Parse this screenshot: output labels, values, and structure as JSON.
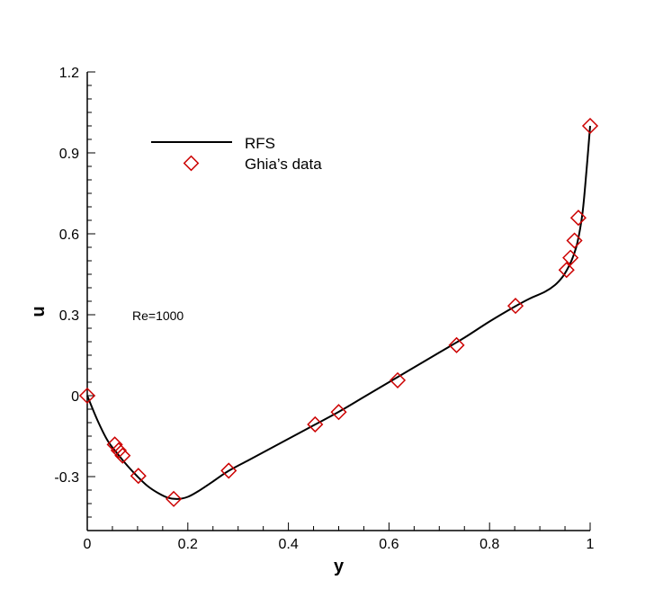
{
  "chart_data": {
    "type": "line",
    "xlabel": "y",
    "ylabel": "u",
    "xlim": [
      0,
      1
    ],
    "ylim": [
      -0.5,
      1.2
    ],
    "x_ticks": [
      0,
      0.2,
      0.4,
      0.6,
      0.8,
      1
    ],
    "x_tick_labels": [
      "0",
      "0.2",
      "0.4",
      "0.6",
      "0.8",
      "1"
    ],
    "y_ticks": [
      -0.3,
      0,
      0.3,
      0.6,
      0.9,
      1.2
    ],
    "y_tick_labels": [
      "-0.3",
      "0",
      "0.3",
      "0.6",
      "0.9",
      "1.2"
    ],
    "grid": false,
    "legend_position": "top-left",
    "annotation": "Re=1000",
    "series": [
      {
        "name": "RFS",
        "style": "solid-line",
        "color": "#000000",
        "x": [
          0,
          0.02,
          0.04,
          0.06,
          0.08,
          0.1,
          0.12,
          0.14,
          0.16,
          0.18,
          0.2,
          0.22,
          0.25,
          0.28,
          0.32,
          0.36,
          0.4,
          0.45,
          0.5,
          0.55,
          0.6,
          0.65,
          0.7,
          0.75,
          0.8,
          0.85,
          0.88,
          0.91,
          0.93,
          0.945,
          0.955,
          0.965,
          0.975,
          0.985,
          0.993,
          1.0
        ],
        "y": [
          0,
          -0.09,
          -0.165,
          -0.215,
          -0.26,
          -0.3,
          -0.335,
          -0.36,
          -0.378,
          -0.383,
          -0.375,
          -0.355,
          -0.318,
          -0.28,
          -0.24,
          -0.2,
          -0.16,
          -0.11,
          -0.06,
          -0.005,
          0.05,
          0.105,
          0.16,
          0.215,
          0.275,
          0.33,
          0.36,
          0.385,
          0.41,
          0.44,
          0.47,
          0.51,
          0.57,
          0.68,
          0.84,
          1.0
        ]
      },
      {
        "name": "Ghia’s data",
        "style": "diamond-markers",
        "color": "#cc0000",
        "x": [
          0,
          0.0547,
          0.0625,
          0.0703,
          0.1016,
          0.1719,
          0.2813,
          0.4531,
          0.5,
          0.6172,
          0.7344,
          0.8516,
          0.9531,
          0.9609,
          0.9688,
          0.9766,
          1.0
        ],
        "y": [
          0,
          -0.1811,
          -0.2029,
          -0.2222,
          -0.2973,
          -0.3829,
          -0.2781,
          -0.1065,
          -0.0608,
          0.057,
          0.1872,
          0.333,
          0.466,
          0.5112,
          0.5749,
          0.6593,
          1.0
        ]
      }
    ]
  }
}
